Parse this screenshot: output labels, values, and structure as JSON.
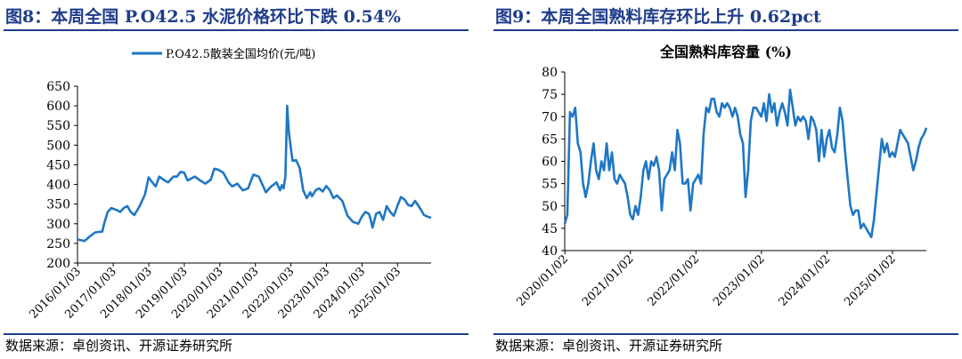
{
  "figures": [
    {
      "title": "图8：本周全国 P.O42.5 水泥价格环比下跌 0.54%",
      "source": "数据来源：卓创资讯、开源证券研究所"
    },
    {
      "title": "图9：本周全国熟料库存环比上升 0.62pct",
      "source": "数据来源：卓创资讯、开源证券研究所"
    }
  ],
  "colors": {
    "series": "#1f77c4",
    "title": "#1f3c8a"
  },
  "chart_data": [
    {
      "type": "line",
      "title": "",
      "legend": {
        "position": "top",
        "entries": [
          "P.O42.5散装全国均价(元/吨)"
        ]
      },
      "xlabel": "",
      "ylabel": "",
      "ylim": [
        200,
        650
      ],
      "yticks": [
        "650",
        "600",
        "550",
        "500",
        "450",
        "400",
        "350",
        "300",
        "250",
        "200"
      ],
      "xticks": [
        "2016/01/03",
        "2017/01/03",
        "2018/01/03",
        "2019/01/03",
        "2020/01/03",
        "2021/01/03",
        "2022/01/03",
        "2023/01/03",
        "2024/01/03",
        "2025/01/03"
      ],
      "xlim": [
        2016.0,
        2025.95
      ],
      "grid": false,
      "series": [
        {
          "name": "P.O42.5散装全国均价(元/吨)",
          "x": [
            2016.0,
            2016.2,
            2016.35,
            2016.5,
            2016.7,
            2016.75,
            2016.85,
            2016.95,
            2017.1,
            2017.2,
            2017.3,
            2017.4,
            2017.5,
            2017.6,
            2017.75,
            2017.9,
            2018.0,
            2018.15,
            2018.2,
            2018.3,
            2018.45,
            2018.55,
            2018.7,
            2018.8,
            2018.9,
            2019.0,
            2019.1,
            2019.3,
            2019.45,
            2019.6,
            2019.75,
            2019.85,
            2019.95,
            2020.1,
            2020.25,
            2020.35,
            2020.5,
            2020.65,
            2020.8,
            2020.95,
            2021.1,
            2021.3,
            2021.45,
            2021.6,
            2021.7,
            2021.75,
            2021.8,
            2021.85,
            2021.9,
            2021.95,
            2022.05,
            2022.15,
            2022.25,
            2022.35,
            2022.45,
            2022.55,
            2022.6,
            2022.7,
            2022.8,
            2022.9,
            2023.0,
            2023.1,
            2023.2,
            2023.3,
            2023.45,
            2023.6,
            2023.75,
            2023.9,
            2024.0,
            2024.1,
            2024.2,
            2024.25,
            2024.3,
            2024.4,
            2024.5,
            2024.6,
            2024.7,
            2024.8,
            2024.9,
            2025.0,
            2025.1,
            2025.2,
            2025.3,
            2025.4,
            2025.5,
            2025.6,
            2025.7,
            2025.75,
            2025.85,
            2025.95
          ],
          "values": [
            260,
            256,
            268,
            278,
            280,
            300,
            330,
            340,
            335,
            330,
            340,
            345,
            330,
            322,
            345,
            375,
            418,
            400,
            395,
            420,
            410,
            405,
            420,
            420,
            432,
            430,
            410,
            420,
            410,
            402,
            412,
            440,
            438,
            430,
            405,
            395,
            402,
            385,
            390,
            425,
            420,
            380,
            395,
            405,
            385,
            398,
            390,
            420,
            600,
            530,
            460,
            462,
            442,
            385,
            365,
            380,
            370,
            385,
            390,
            382,
            396,
            385,
            365,
            372,
            358,
            320,
            305,
            300,
            318,
            330,
            325,
            310,
            290,
            325,
            330,
            310,
            345,
            330,
            320,
            345,
            368,
            362,
            348,
            345,
            358,
            345,
            330,
            322,
            318,
            315
          ]
        }
      ]
    },
    {
      "type": "line",
      "title": "全国熟料库容量 (%)",
      "xlabel": "",
      "ylabel": "",
      "ylim": [
        40,
        80
      ],
      "yticks": [
        "80",
        "75",
        "70",
        "65",
        "60",
        "55",
        "50",
        "45",
        "40"
      ],
      "xticks": [
        "2020/01/02",
        "2021/01/02",
        "2022/01/02",
        "2023/01/02",
        "2024/01/02",
        "2025/01/02"
      ],
      "xlim": [
        2020.0,
        2025.52
      ],
      "grid": false,
      "series": [
        {
          "name": "",
          "x": [
            2020.0,
            2020.04,
            2020.08,
            2020.12,
            2020.16,
            2020.2,
            2020.24,
            2020.28,
            2020.32,
            2020.36,
            2020.4,
            2020.44,
            2020.48,
            2020.52,
            2020.56,
            2020.6,
            2020.64,
            2020.68,
            2020.72,
            2020.76,
            2020.8,
            2020.84,
            2020.88,
            2020.92,
            2020.96,
            2021.0,
            2021.04,
            2021.08,
            2021.12,
            2021.16,
            2021.2,
            2021.24,
            2021.28,
            2021.32,
            2021.36,
            2021.4,
            2021.44,
            2021.48,
            2021.52,
            2021.56,
            2021.6,
            2021.64,
            2021.68,
            2021.72,
            2021.76,
            2021.8,
            2021.84,
            2021.88,
            2021.92,
            2021.96,
            2022.0,
            2022.04,
            2022.08,
            2022.12,
            2022.16,
            2022.2,
            2022.24,
            2022.28,
            2022.32,
            2022.36,
            2022.4,
            2022.44,
            2022.48,
            2022.52,
            2022.56,
            2022.6,
            2022.64,
            2022.68,
            2022.72,
            2022.76,
            2022.8,
            2022.84,
            2022.88,
            2022.92,
            2022.96,
            2023.0,
            2023.04,
            2023.08,
            2023.12,
            2023.16,
            2023.2,
            2023.24,
            2023.28,
            2023.32,
            2023.36,
            2023.4,
            2023.44,
            2023.48,
            2023.52,
            2023.56,
            2023.6,
            2023.64,
            2023.68,
            2023.72,
            2023.76,
            2023.8,
            2023.84,
            2023.88,
            2023.92,
            2023.96,
            2024.0,
            2024.04,
            2024.08,
            2024.12,
            2024.16,
            2024.2,
            2024.24,
            2024.28,
            2024.32,
            2024.36,
            2024.4,
            2024.44,
            2024.48,
            2024.52,
            2024.56,
            2024.6,
            2024.64,
            2024.68,
            2024.72,
            2024.76,
            2024.8,
            2024.84,
            2024.88,
            2024.92,
            2024.96,
            2025.0,
            2025.04,
            2025.08,
            2025.12,
            2025.16,
            2025.2,
            2025.24,
            2025.28,
            2025.32,
            2025.36,
            2025.4,
            2025.44,
            2025.48,
            2025.52
          ],
          "values": [
            46,
            48,
            71,
            70,
            72,
            64,
            62,
            55,
            52,
            55,
            60,
            64,
            58,
            56,
            60,
            58,
            64,
            58,
            62,
            56,
            55,
            57,
            56,
            55,
            52,
            48,
            47,
            50,
            48,
            52,
            58,
            60,
            56,
            60,
            59,
            61,
            58,
            49,
            56,
            57,
            58,
            62,
            58,
            67,
            64,
            55,
            55,
            56,
            49,
            55,
            56,
            57,
            55,
            66,
            72,
            71,
            74,
            74,
            71,
            70,
            73,
            72,
            73,
            72,
            70,
            72,
            70,
            66,
            64,
            52,
            58,
            69,
            72,
            72,
            71,
            70,
            73,
            69,
            75,
            71,
            73,
            68,
            71,
            73,
            71,
            68,
            76,
            72,
            68,
            70,
            69,
            70,
            69,
            65,
            70,
            69,
            67,
            60,
            67,
            61,
            65,
            67,
            63,
            62,
            66,
            72,
            69,
            62,
            56,
            50,
            48,
            49,
            49,
            45,
            46,
            45,
            44,
            43,
            47,
            53,
            59,
            65,
            62,
            64,
            61,
            62,
            61,
            64,
            67,
            66,
            65,
            64,
            61,
            58,
            60,
            63,
            65,
            66,
            67.5
          ]
        }
      ]
    }
  ]
}
